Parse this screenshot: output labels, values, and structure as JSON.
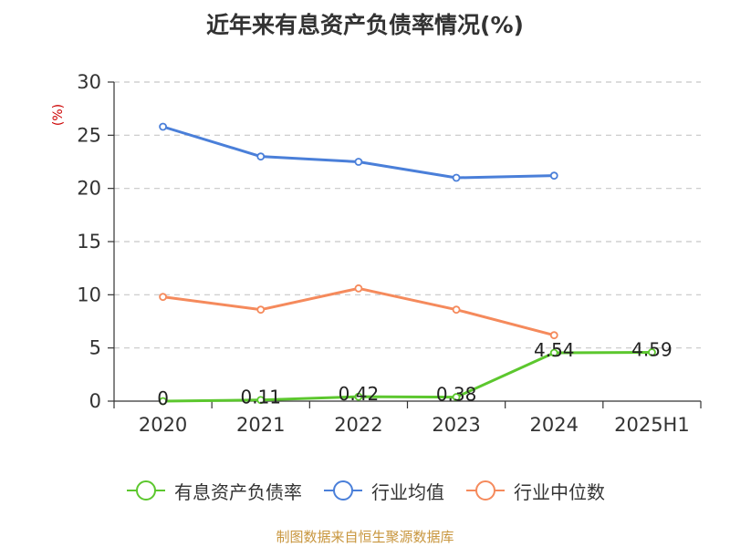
{
  "title": "近年来有息资产负债率情况(%)",
  "source": "制图数据来自恒生聚源数据库",
  "colors": {
    "series1": "#5cc72e",
    "series2": "#4a7fd9",
    "series3": "#f58a5c",
    "axis": "#333333",
    "grid": "#c8c8c8",
    "unit": "#cc0000"
  },
  "chart_data": {
    "type": "line",
    "title": "近年来有息资产负债率情况(%)",
    "ylabel": "(%)",
    "xlabel": "",
    "ylim": [
      0,
      30
    ],
    "yticks": [
      0,
      5,
      10,
      15,
      20,
      25,
      30
    ],
    "grid": true,
    "legend_position": "bottom",
    "categories": [
      "2020",
      "2021",
      "2022",
      "2023",
      "2024",
      "2025H1"
    ],
    "series": [
      {
        "name": "有息资产负债率",
        "color": "#5cc72e",
        "values": [
          0,
          0.11,
          0.42,
          0.38,
          4.54,
          4.59
        ],
        "labels": [
          "0",
          "0.11",
          "0.42",
          "0.38",
          "4.54",
          "4.59"
        ]
      },
      {
        "name": "行业均值",
        "color": "#4a7fd9",
        "values": [
          25.8,
          23.0,
          22.5,
          21.0,
          21.2,
          null
        ]
      },
      {
        "name": "行业中位数",
        "color": "#f58a5c",
        "values": [
          9.8,
          8.6,
          10.6,
          8.6,
          6.2,
          null
        ]
      }
    ]
  }
}
